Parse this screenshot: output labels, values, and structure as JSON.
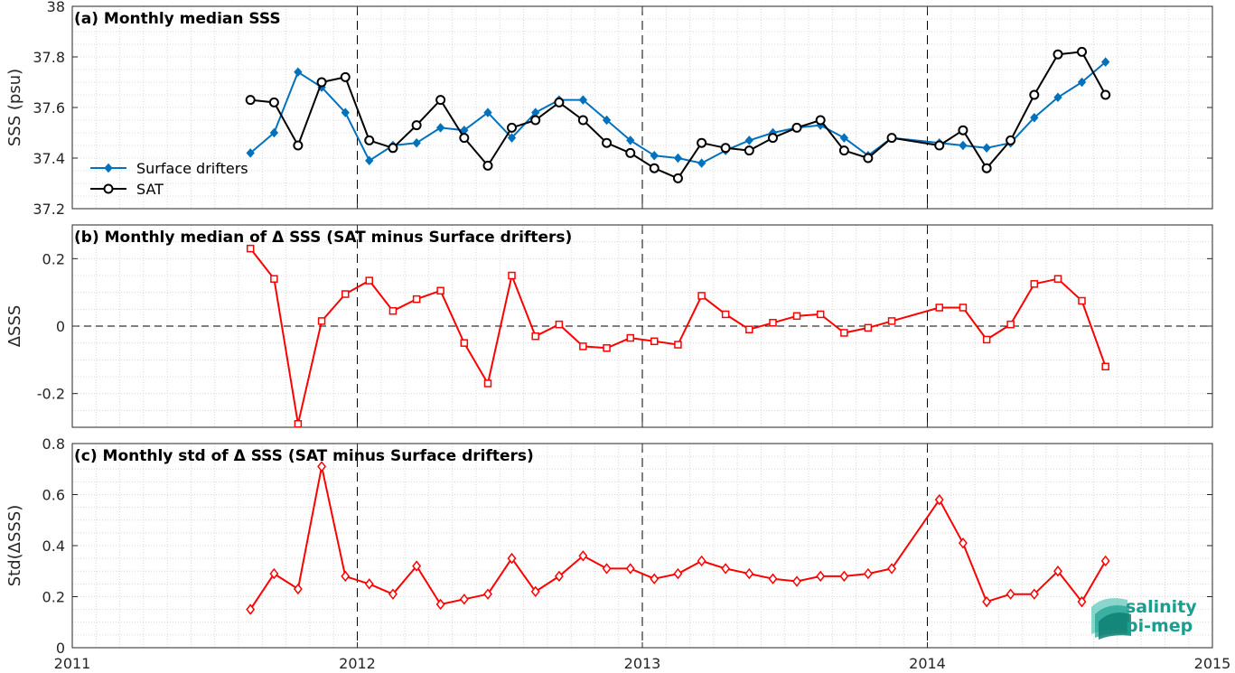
{
  "colors": {
    "drifters": "#0072BD",
    "sat": "#000000",
    "delta": "#FF0000",
    "logo": "#1A9E8F"
  },
  "logo": {
    "line1": "salinity",
    "line2": "pi-mep"
  },
  "chart_data": [
    {
      "type": "line",
      "title": "(a) Monthly median SSS",
      "ylabel": "SSS (psu)",
      "xlim": [
        2011,
        2015
      ],
      "ylim": [
        37.2,
        38
      ],
      "yticks": [
        "37.2",
        "37.4",
        "37.6",
        "37.8",
        "38"
      ],
      "ytick_values": [
        37.2,
        37.4,
        37.6,
        37.8,
        38
      ],
      "legend_position": "left",
      "series": [
        {
          "name": "Surface drifters",
          "marker": "diamond-filled",
          "x": [
            2011.625,
            2011.708,
            2011.792,
            2011.875,
            2011.958,
            2012.042,
            2012.125,
            2012.208,
            2012.292,
            2012.375,
            2012.458,
            2012.542,
            2012.625,
            2012.708,
            2012.792,
            2012.875,
            2012.958,
            2013.042,
            2013.125,
            2013.208,
            2013.292,
            2013.375,
            2013.458,
            2013.542,
            2013.625,
            2013.708,
            2013.792,
            2013.875,
            2014.042,
            2014.125,
            2014.208,
            2014.292,
            2014.375,
            2014.458,
            2014.542,
            2014.625
          ],
          "values": [
            37.42,
            37.5,
            37.74,
            37.68,
            37.58,
            37.39,
            37.45,
            37.46,
            37.52,
            37.51,
            37.58,
            37.48,
            37.58,
            37.63,
            37.63,
            37.55,
            37.47,
            37.41,
            37.4,
            37.38,
            37.43,
            37.47,
            37.5,
            37.52,
            37.53,
            37.48,
            37.41,
            37.48,
            37.46,
            37.45,
            37.44,
            37.46,
            37.56,
            37.64,
            37.7,
            37.78
          ]
        },
        {
          "name": "SAT",
          "marker": "circle-open",
          "x": [
            2011.625,
            2011.708,
            2011.792,
            2011.875,
            2011.958,
            2012.042,
            2012.125,
            2012.208,
            2012.292,
            2012.375,
            2012.458,
            2012.542,
            2012.625,
            2012.708,
            2012.792,
            2012.875,
            2012.958,
            2013.042,
            2013.125,
            2013.208,
            2013.292,
            2013.375,
            2013.458,
            2013.542,
            2013.625,
            2013.708,
            2013.792,
            2013.875,
            2014.042,
            2014.125,
            2014.208,
            2014.292,
            2014.375,
            2014.458,
            2014.542,
            2014.625
          ],
          "values": [
            37.63,
            37.62,
            37.45,
            37.7,
            37.72,
            37.47,
            37.44,
            37.53,
            37.63,
            37.48,
            37.37,
            37.52,
            37.55,
            37.62,
            37.55,
            37.46,
            37.42,
            37.36,
            37.32,
            37.46,
            37.44,
            37.43,
            37.48,
            37.52,
            37.55,
            37.43,
            37.4,
            37.48,
            37.45,
            37.51,
            37.36,
            37.47,
            37.65,
            37.81,
            37.82,
            37.65
          ]
        }
      ]
    },
    {
      "type": "line",
      "title": "(b) Monthly median of Δ SSS (SAT minus Surface drifters)",
      "ylabel": "ΔSSS",
      "xlim": [
        2011,
        2015
      ],
      "ylim": [
        -0.3,
        0.3
      ],
      "yticks": [
        "-0.2",
        "0",
        "0.2"
      ],
      "ytick_values": [
        -0.2,
        0,
        0.2
      ],
      "zero_line": "dashed",
      "series": [
        {
          "name": "",
          "marker": "square-open",
          "x": [
            2011.625,
            2011.708,
            2011.792,
            2011.875,
            2011.958,
            2012.042,
            2012.125,
            2012.208,
            2012.292,
            2012.375,
            2012.458,
            2012.542,
            2012.625,
            2012.708,
            2012.792,
            2012.875,
            2012.958,
            2013.042,
            2013.125,
            2013.208,
            2013.292,
            2013.375,
            2013.458,
            2013.542,
            2013.625,
            2013.708,
            2013.792,
            2013.875,
            2014.042,
            2014.125,
            2014.208,
            2014.292,
            2014.375,
            2014.458,
            2014.542,
            2014.625
          ],
          "values": [
            0.23,
            0.14,
            -0.29,
            0.015,
            0.095,
            0.135,
            0.045,
            0.08,
            0.105,
            -0.05,
            -0.17,
            0.15,
            -0.03,
            0.005,
            -0.06,
            -0.065,
            -0.035,
            -0.045,
            -0.055,
            0.09,
            0.035,
            -0.01,
            0.01,
            0.03,
            0.035,
            -0.02,
            -0.005,
            0.015,
            0.055,
            0.055,
            -0.04,
            0.005,
            0.125,
            0.14,
            0.075,
            -0.12
          ]
        }
      ]
    },
    {
      "type": "line",
      "title": "(c) Monthly std of Δ SSS (SAT minus Surface drifters)",
      "ylabel": "Std(ΔSSS)",
      "xlim": [
        2011,
        2015
      ],
      "ylim": [
        0,
        0.8
      ],
      "yticks": [
        "0",
        "0.2",
        "0.4",
        "0.6",
        "0.8"
      ],
      "ytick_values": [
        0,
        0.2,
        0.4,
        0.6,
        0.8
      ],
      "xticks": [
        "2011",
        "2012",
        "2013",
        "2014",
        "2015"
      ],
      "xtick_values": [
        2011,
        2012,
        2013,
        2014,
        2015
      ],
      "series": [
        {
          "name": "",
          "marker": "diamond-open",
          "x": [
            2011.625,
            2011.708,
            2011.792,
            2011.875,
            2011.958,
            2012.042,
            2012.125,
            2012.208,
            2012.292,
            2012.375,
            2012.458,
            2012.542,
            2012.625,
            2012.708,
            2012.792,
            2012.875,
            2012.958,
            2013.042,
            2013.125,
            2013.208,
            2013.292,
            2013.375,
            2013.458,
            2013.542,
            2013.625,
            2013.708,
            2013.792,
            2013.875,
            2014.042,
            2014.125,
            2014.208,
            2014.292,
            2014.375,
            2014.458,
            2014.542,
            2014.625
          ],
          "values": [
            0.15,
            0.29,
            0.23,
            0.71,
            0.28,
            0.25,
            0.21,
            0.32,
            0.17,
            0.19,
            0.21,
            0.35,
            0.22,
            0.28,
            0.36,
            0.31,
            0.31,
            0.27,
            0.29,
            0.34,
            0.31,
            0.29,
            0.27,
            0.26,
            0.28,
            0.28,
            0.29,
            0.31,
            0.58,
            0.41,
            0.18,
            0.21,
            0.21,
            0.3,
            0.18,
            0.34
          ]
        }
      ]
    }
  ]
}
